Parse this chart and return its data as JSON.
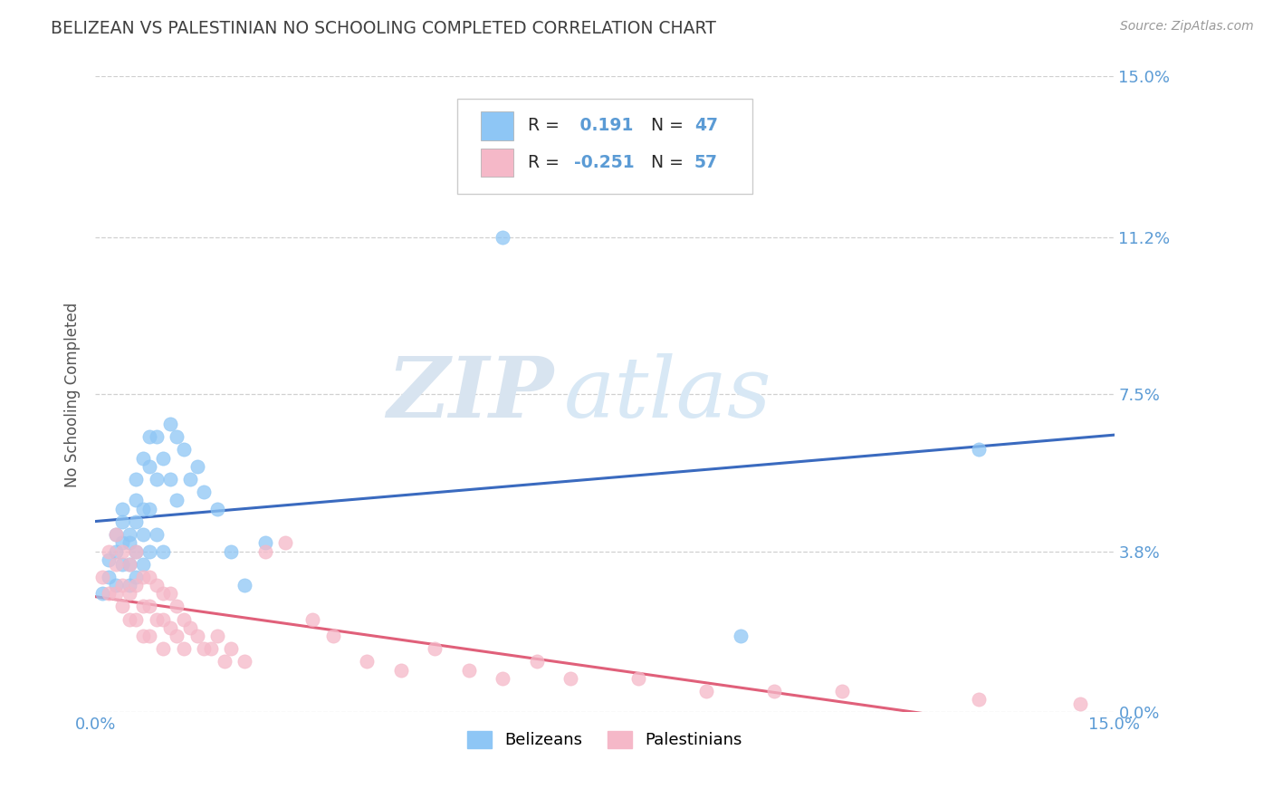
{
  "title": "BELIZEAN VS PALESTINIAN NO SCHOOLING COMPLETED CORRELATION CHART",
  "source": "Source: ZipAtlas.com",
  "ylabel": "No Schooling Completed",
  "xlim": [
    0.0,
    0.15
  ],
  "ylim": [
    0.0,
    0.15
  ],
  "ytick_values": [
    0.0,
    0.038,
    0.075,
    0.112,
    0.15
  ],
  "ytick_labels": [
    "0.0%",
    "3.8%",
    "7.5%",
    "11.2%",
    "15.0%"
  ],
  "grid_color": "#d0d0d0",
  "background_color": "#ffffff",
  "belizean_color": "#8ec6f5",
  "palestinian_color": "#f5b8c8",
  "belizean_line_color": "#3a6abf",
  "palestinian_line_color": "#e0607a",
  "R_belizean": 0.191,
  "N_belizean": 47,
  "R_palestinian": -0.251,
  "N_palestinian": 57,
  "title_color": "#404040",
  "axis_label_color": "#555555",
  "tick_label_color": "#5b9bd5",
  "watermark_zip": "ZIP",
  "watermark_atlas": "atlas",
  "belizean_x": [
    0.001,
    0.002,
    0.002,
    0.003,
    0.003,
    0.003,
    0.004,
    0.004,
    0.004,
    0.004,
    0.005,
    0.005,
    0.005,
    0.005,
    0.006,
    0.006,
    0.006,
    0.006,
    0.006,
    0.007,
    0.007,
    0.007,
    0.007,
    0.008,
    0.008,
    0.008,
    0.008,
    0.009,
    0.009,
    0.009,
    0.01,
    0.01,
    0.011,
    0.011,
    0.012,
    0.012,
    0.013,
    0.014,
    0.015,
    0.016,
    0.018,
    0.02,
    0.022,
    0.025,
    0.06,
    0.095,
    0.13
  ],
  "belizean_y": [
    0.028,
    0.036,
    0.032,
    0.042,
    0.038,
    0.03,
    0.045,
    0.04,
    0.035,
    0.048,
    0.042,
    0.04,
    0.035,
    0.03,
    0.055,
    0.05,
    0.045,
    0.038,
    0.032,
    0.06,
    0.048,
    0.042,
    0.035,
    0.065,
    0.058,
    0.048,
    0.038,
    0.065,
    0.055,
    0.042,
    0.06,
    0.038,
    0.068,
    0.055,
    0.065,
    0.05,
    0.062,
    0.055,
    0.058,
    0.052,
    0.048,
    0.038,
    0.03,
    0.04,
    0.112,
    0.018,
    0.062
  ],
  "palestinian_x": [
    0.001,
    0.002,
    0.002,
    0.003,
    0.003,
    0.003,
    0.004,
    0.004,
    0.004,
    0.005,
    0.005,
    0.005,
    0.006,
    0.006,
    0.006,
    0.007,
    0.007,
    0.007,
    0.008,
    0.008,
    0.008,
    0.009,
    0.009,
    0.01,
    0.01,
    0.01,
    0.011,
    0.011,
    0.012,
    0.012,
    0.013,
    0.013,
    0.014,
    0.015,
    0.016,
    0.017,
    0.018,
    0.019,
    0.02,
    0.022,
    0.025,
    0.028,
    0.032,
    0.035,
    0.04,
    0.045,
    0.05,
    0.055,
    0.06,
    0.065,
    0.07,
    0.08,
    0.09,
    0.1,
    0.11,
    0.13,
    0.145
  ],
  "palestinian_y": [
    0.032,
    0.038,
    0.028,
    0.042,
    0.035,
    0.028,
    0.038,
    0.03,
    0.025,
    0.035,
    0.028,
    0.022,
    0.038,
    0.03,
    0.022,
    0.032,
    0.025,
    0.018,
    0.032,
    0.025,
    0.018,
    0.03,
    0.022,
    0.028,
    0.022,
    0.015,
    0.028,
    0.02,
    0.025,
    0.018,
    0.022,
    0.015,
    0.02,
    0.018,
    0.015,
    0.015,
    0.018,
    0.012,
    0.015,
    0.012,
    0.038,
    0.04,
    0.022,
    0.018,
    0.012,
    0.01,
    0.015,
    0.01,
    0.008,
    0.012,
    0.008,
    0.008,
    0.005,
    0.005,
    0.005,
    0.003,
    0.002
  ]
}
